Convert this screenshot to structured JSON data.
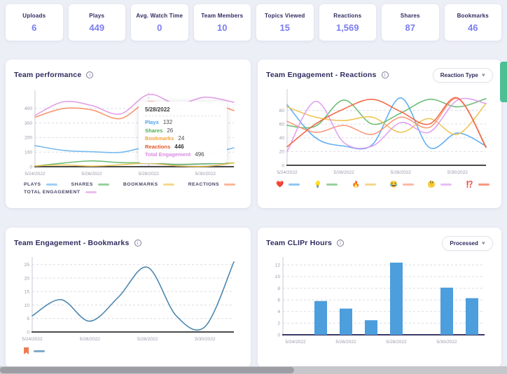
{
  "stats": [
    {
      "label": "Uploads",
      "value": "6"
    },
    {
      "label": "Plays",
      "value": "449"
    },
    {
      "label": "Avg. Watch Time",
      "value": "0"
    },
    {
      "label": "Team Members",
      "value": "10"
    },
    {
      "label": "Topics Viewed",
      "value": "15"
    },
    {
      "label": "Reactions",
      "value": "1,569"
    },
    {
      "label": "Shares",
      "value": "87"
    },
    {
      "label": "Bookmarks",
      "value": "46"
    }
  ],
  "colors": {
    "stat_value": "#7b7ef0",
    "title": "#2e2b5f",
    "grid": "#dcdce6",
    "tick": "#9a99ad",
    "baseline": "#4a4a4a",
    "bar_baseline": "#3b3866",
    "side_tab": "#4cc094"
  },
  "chart_data": [
    {
      "id": "performance",
      "type": "line",
      "title": "Team performance",
      "categories": [
        "5/24/2022",
        "5/25/2022",
        "5/26/2022",
        "5/27/2022",
        "5/28/2022",
        "5/29/2022",
        "5/30/2022",
        "5/31/2022"
      ],
      "tick_indices": [
        0,
        2,
        4,
        6
      ],
      "ylim": [
        0,
        510
      ],
      "yticks": [
        0,
        100,
        200,
        300,
        400
      ],
      "grid": true,
      "legend_position": "bottom",
      "series": [
        {
          "name": "Plays",
          "color": "#6cb5f0",
          "values": [
            145,
            112,
            103,
            98,
            132,
            90,
            86,
            130
          ]
        },
        {
          "name": "Shares",
          "color": "#62b76a",
          "values": [
            4,
            25,
            40,
            28,
            26,
            15,
            20,
            25
          ]
        },
        {
          "name": "Bookmarks",
          "color": "#eec34f",
          "values": [
            6,
            12,
            4,
            13,
            24,
            6,
            2,
            26
          ]
        },
        {
          "name": "Reactions",
          "color": "#f98e62",
          "values": [
            340,
            400,
            390,
            330,
            446,
            398,
            442,
            385
          ]
        },
        {
          "name": "Total Engagement",
          "color": "#e19ae5",
          "values": [
            352,
            446,
            420,
            362,
            496,
            430,
            478,
            442
          ]
        }
      ],
      "tooltip": {
        "date": "5/28/2022",
        "x_index": 4,
        "rows": [
          {
            "label": "Plays",
            "value": "132",
            "color": "#4aa3ee",
            "bold": false
          },
          {
            "label": "Shares",
            "value": "26",
            "color": "#4caf50",
            "bold": false
          },
          {
            "label": "Bookmarks",
            "value": "24",
            "color": "#f2a33c",
            "bold": false
          },
          {
            "label": "Reactions",
            "value": "446",
            "color": "#e2572b",
            "bold": true
          },
          {
            "label": "Total Engagement",
            "value": "496",
            "color": "#d98ae0",
            "bold": false
          }
        ]
      }
    },
    {
      "id": "reactions",
      "type": "line",
      "title": "Team Engagement - Reactions",
      "dropdown_label": "Reaction Type",
      "categories": [
        "5/24/2022",
        "5/25/2022",
        "5/26/2022",
        "5/27/2022",
        "5/28/2022",
        "5/29/2022",
        "5/30/2022",
        "5/31/2022"
      ],
      "tick_indices": [
        0,
        2,
        4,
        6
      ],
      "ylim": [
        0,
        108
      ],
      "yticks": [
        0,
        20,
        40,
        60,
        80
      ],
      "grid": true,
      "legend_position": "bottom",
      "series": [
        {
          "name": "❤️",
          "color": "#55a8f0",
          "values": [
            88,
            40,
            28,
            30,
            98,
            26,
            47,
            28
          ]
        },
        {
          "name": "💡",
          "color": "#63b96b",
          "values": [
            58,
            57,
            95,
            60,
            76,
            96,
            85,
            97
          ]
        },
        {
          "name": "🔥",
          "color": "#edc24d",
          "values": [
            85,
            70,
            65,
            70,
            48,
            68,
            45,
            90
          ]
        },
        {
          "name": "😂",
          "color": "#fb9274",
          "values": [
            64,
            48,
            58,
            45,
            70,
            55,
            97,
            27
          ]
        },
        {
          "name": "🤔",
          "color": "#dd9af0",
          "values": [
            20,
            93,
            33,
            28,
            62,
            48,
            95,
            90
          ]
        },
        {
          "name": "⁉️",
          "color": "#f2613c",
          "values": [
            27,
            60,
            82,
            96,
            78,
            60,
            98,
            26
          ]
        }
      ]
    },
    {
      "id": "bookmarks",
      "type": "line",
      "title": "Team Engagement - Bookmarks",
      "categories": [
        "5/24/2022",
        "5/25/2022",
        "5/26/2022",
        "5/27/2022",
        "5/28/2022",
        "5/29/2022",
        "5/30/2022",
        "5/31/2022"
      ],
      "tick_indices": [
        0,
        2,
        4,
        6
      ],
      "ylim": [
        0,
        27
      ],
      "yticks": [
        0,
        5,
        10,
        15,
        20,
        25
      ],
      "grid": true,
      "legend_position": "bottom",
      "series": [
        {
          "icon": "bookmark-icon",
          "name": "Bookmarks",
          "color": "#3e7da8",
          "values": [
            6,
            12,
            4,
            13,
            24,
            6,
            2,
            26
          ]
        }
      ]
    },
    {
      "id": "hours",
      "type": "bar",
      "title": "Team CLIPr Hours",
      "dropdown_label": "Processed",
      "categories": [
        "5/24/2022",
        "5/25/2022",
        "5/26/2022",
        "5/27/2022",
        "5/28/2022",
        "5/29/2022",
        "5/30/2022",
        "5/31/2022"
      ],
      "tick_indices": [
        0,
        2,
        4,
        6
      ],
      "ylim": [
        0,
        13
      ],
      "yticks": [
        0,
        2,
        4,
        6,
        8,
        10,
        12
      ],
      "grid": true,
      "bar_color": "#4d9edc",
      "values": [
        0,
        5.8,
        4.5,
        2.5,
        12.4,
        0,
        8.1,
        6.3
      ]
    }
  ]
}
